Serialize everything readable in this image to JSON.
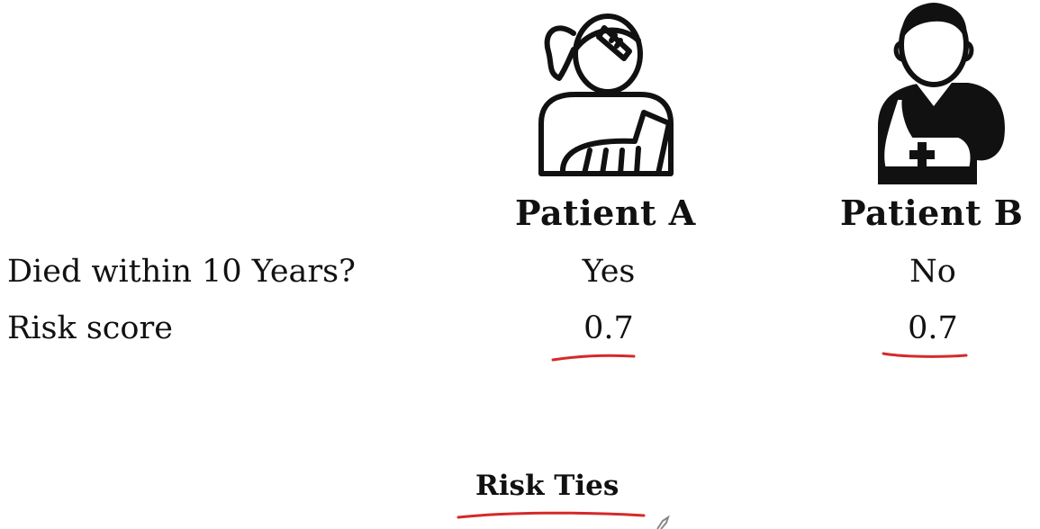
{
  "patients": [
    {
      "name": "Patient A",
      "icon": "female-patient-arm-cast-icon",
      "died": "Yes",
      "risk_score": "0.7"
    },
    {
      "name": "Patient B",
      "icon": "male-patient-arm-sling-icon",
      "died": "No",
      "risk_score": "0.7"
    }
  ],
  "rows": {
    "died_label": "Died within 10 Years?",
    "risk_label": "Risk score"
  },
  "caption": "Risk Ties",
  "colors": {
    "ink": "#111111",
    "annotation": "#d42a2a"
  }
}
